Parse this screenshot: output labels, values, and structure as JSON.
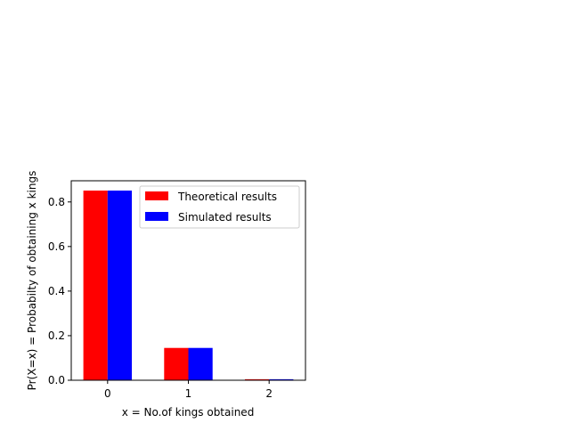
{
  "chart_data": {
    "type": "bar",
    "categories": [
      "0",
      "1",
      "2"
    ],
    "x": [
      0,
      1,
      2
    ],
    "series": [
      {
        "name": "Theoretical results",
        "color": "#ff0000",
        "values": [
          0.851,
          0.145,
          0.0045
        ]
      },
      {
        "name": "Simulated results",
        "color": "#0000ff",
        "values": [
          0.851,
          0.145,
          0.0045
        ]
      }
    ],
    "title": "",
    "xlabel": "x = No.of kings obtained",
    "ylabel": "Pr(X=x) = Probabilty of obtaining x kings",
    "ylim": [
      0,
      0.895
    ],
    "yticks": [
      0.0,
      0.2,
      0.4,
      0.6,
      0.8
    ],
    "ytick_labels": [
      "0.0",
      "0.2",
      "0.4",
      "0.6",
      "0.8"
    ],
    "grid": false,
    "legend": "top-right"
  }
}
